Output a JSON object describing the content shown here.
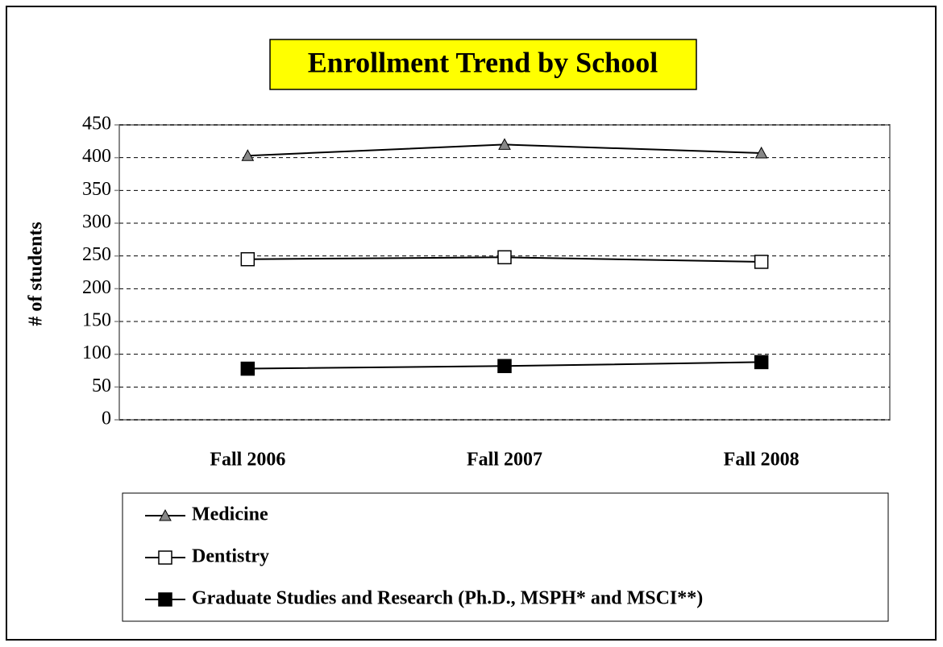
{
  "chart_data": {
    "type": "line",
    "title": "Enrollment Trend by School",
    "ylabel": "# of students",
    "categories": [
      "Fall 2006",
      "Fall 2007",
      "Fall 2008"
    ],
    "series": [
      {
        "name": "Medicine",
        "color": "#000000",
        "marker": "triangle",
        "marker_fill": "#888888",
        "values": [
          403,
          420,
          407
        ]
      },
      {
        "name": "Dentistry",
        "color": "#000000",
        "marker": "square",
        "marker_fill": "#ffffff",
        "values": [
          245,
          248,
          241
        ]
      },
      {
        "name": "Graduate Studies and Research (Ph.D., MSPH* and MSCI**)",
        "color": "#000000",
        "marker": "square",
        "marker_fill": "#000000",
        "values": [
          78,
          82,
          88
        ]
      }
    ],
    "ylim": [
      0,
      450
    ],
    "yticks": [
      0,
      50,
      100,
      150,
      200,
      250,
      300,
      350,
      400,
      450
    ],
    "grid": true
  }
}
